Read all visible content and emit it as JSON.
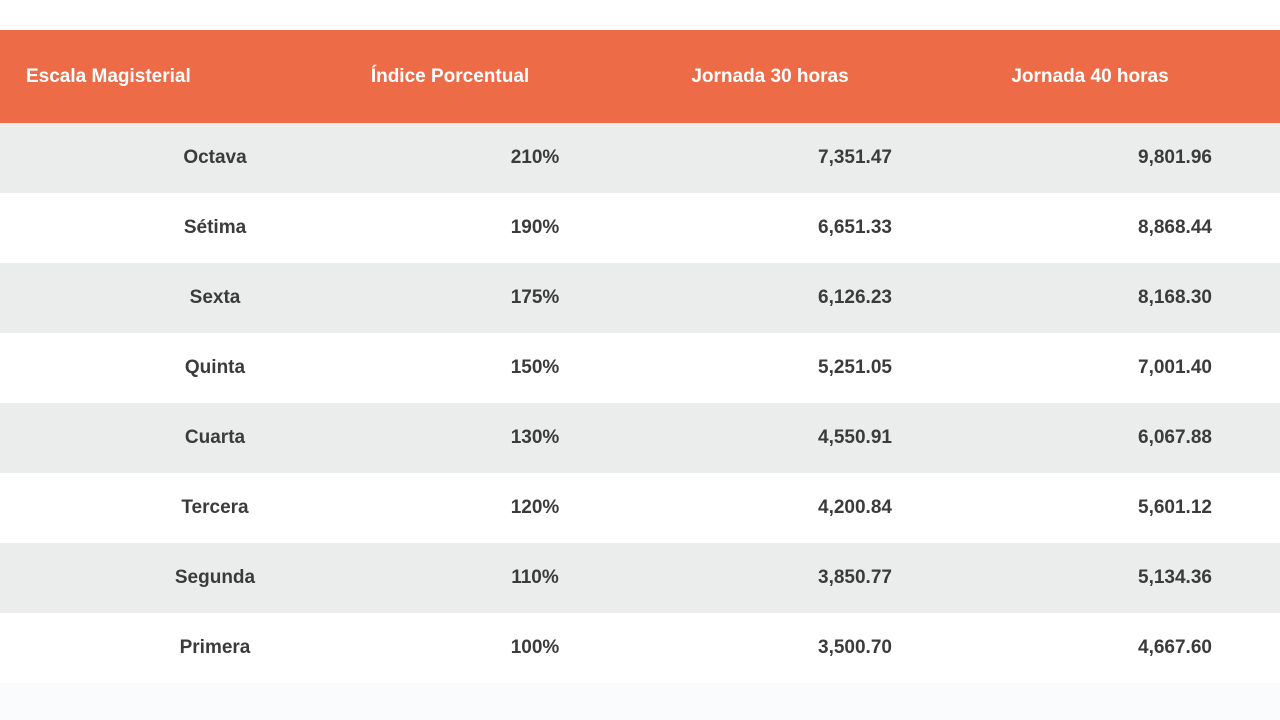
{
  "colors": {
    "header_bg": "#ed6b47",
    "header_text": "#ffffff",
    "stripe_row_bg": "#ebecec",
    "plain_row_bg": "#ffffff",
    "body_text": "#3b3b3b",
    "footer_band_bg": "#fafbfc"
  },
  "chart_data": {
    "type": "table",
    "title": "",
    "columns": [
      "Escala Magisterial",
      "Índice Porcentual",
      "Jornada 30 horas",
      "Jornada 40 horas"
    ],
    "rows": [
      [
        "Octava",
        "210%",
        "7,351.47",
        "9,801.96"
      ],
      [
        "Sétima",
        "190%",
        "6,651.33",
        "8,868.44"
      ],
      [
        "Sexta",
        "175%",
        "6,126.23",
        "8,168.30"
      ],
      [
        "Quinta",
        "150%",
        "5,251.05",
        "7,001.40"
      ],
      [
        "Cuarta",
        "130%",
        "4,550.91",
        "6,067.88"
      ],
      [
        "Tercera",
        "120%",
        "4,200.84",
        "5,601.12"
      ],
      [
        "Segunda",
        "110%",
        "3,850.77",
        "5,134.36"
      ],
      [
        "Primera",
        "100%",
        "3,500.70",
        "4,667.60"
      ]
    ],
    "layout": {
      "striped": true,
      "stripe_order": "first-row-shaded",
      "header_alignment": "first-column-left-others-center",
      "body_alignment": "center-right-shifted"
    }
  }
}
